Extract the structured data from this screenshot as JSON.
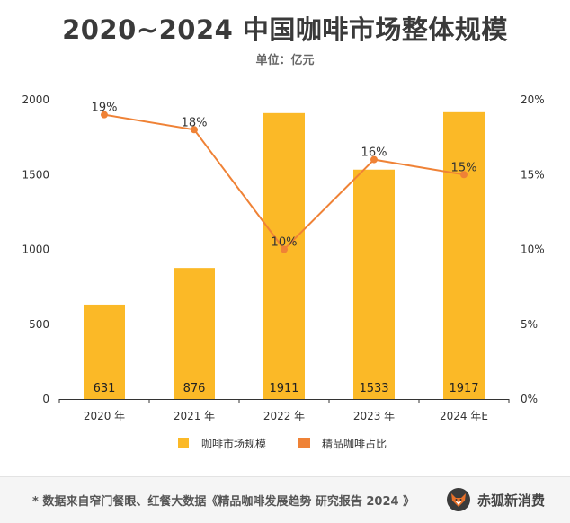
{
  "title": "2020~2024 中国咖啡市场整体规模",
  "unit": "单位：亿元",
  "colors": {
    "bar": "#FBB927",
    "line": "#EF8236",
    "axis": "#333333"
  },
  "chart_data": {
    "type": "bar+line",
    "categories": [
      "2020 年",
      "2021 年",
      "2022 年",
      "2023 年",
      "2024 年E"
    ],
    "series": [
      {
        "name": "咖啡市场规模",
        "type": "bar",
        "axis": "left",
        "values": [
          631,
          876,
          1911,
          1533,
          1917
        ]
      },
      {
        "name": "精品咖啡占比",
        "type": "line",
        "axis": "right",
        "values": [
          19,
          18,
          10,
          16,
          15
        ]
      }
    ],
    "left_axis": {
      "min": 0,
      "max": 2000,
      "ticks": [
        "0",
        "500",
        "1000",
        "1500",
        "2000"
      ]
    },
    "right_axis": {
      "min": 0,
      "max": 20,
      "ticks": [
        "0%",
        "5%",
        "10%",
        "15%",
        "20%"
      ]
    },
    "bar_labels": [
      "631",
      "876",
      "1911",
      "1533",
      "1917"
    ],
    "line_labels": [
      "19%",
      "18%",
      "10%",
      "16%",
      "15%"
    ],
    "legend": [
      "咖啡市场规模",
      "精品咖啡占比"
    ],
    "legend_position": "bottom"
  },
  "footer": {
    "source": "* 数据来自窄门餐眼、红餐大数据《精品咖啡发展趋势 研究报告 2024 》",
    "brand": "赤狐新消费",
    "brand_icon": "fox-logo-icon"
  }
}
